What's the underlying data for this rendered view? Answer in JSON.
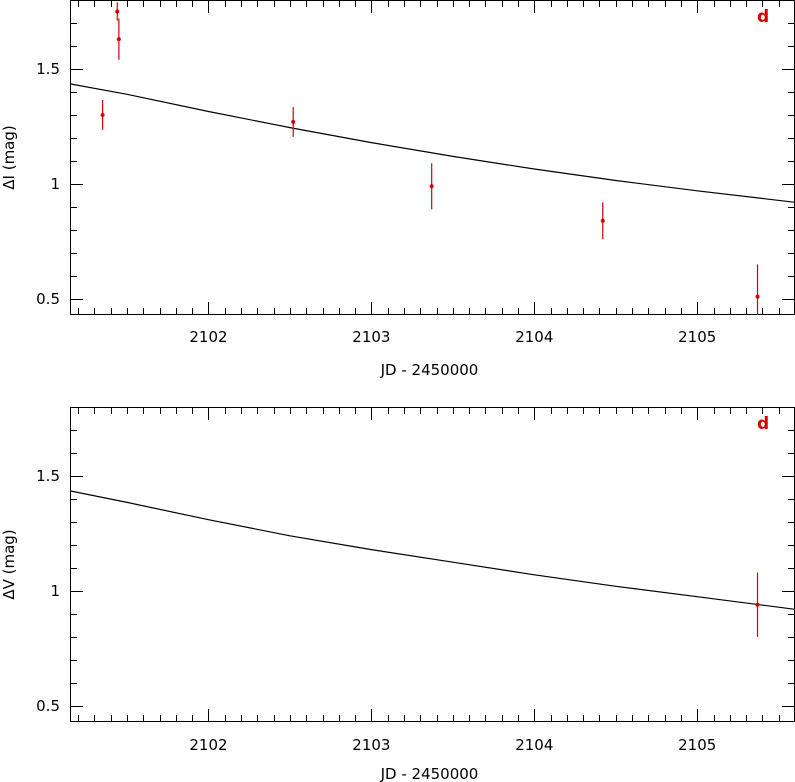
{
  "chart_data": [
    {
      "type": "scatter",
      "panel_label": "d",
      "xlabel": "JD - 2450000",
      "ylabel": "ΔI (mag)",
      "xlim": [
        2101.15,
        2105.6
      ],
      "ylim": [
        0.43,
        1.8
      ],
      "xticks": [
        2102,
        2103,
        2104,
        2105
      ],
      "xtick_labels": [
        "2102",
        "2103",
        "2104",
        "2105"
      ],
      "yticks": [
        0.5,
        1.0,
        1.5
      ],
      "ytick_labels": [
        "0.5",
        "1",
        "1.5"
      ],
      "grid": false,
      "colors": {
        "points": "#d40000",
        "model": "#000000",
        "label": "#d40000"
      },
      "points": [
        {
          "x": 2101.35,
          "y": 1.3,
          "yerr": 0.065
        },
        {
          "x": 2101.44,
          "y": 1.75,
          "yerr": 0.04
        },
        {
          "x": 2101.45,
          "y": 1.63,
          "yerr": 0.09
        },
        {
          "x": 2102.52,
          "y": 1.27,
          "yerr": 0.065
        },
        {
          "x": 2103.37,
          "y": 0.99,
          "yerr": 0.1
        },
        {
          "x": 2104.42,
          "y": 0.84,
          "yerr": 0.08
        },
        {
          "x": 2105.37,
          "y": 0.51,
          "yerr": 0.14
        }
      ],
      "model_curve": {
        "x": [
          2101.15,
          2101.5,
          2102.0,
          2102.5,
          2103.0,
          2103.5,
          2104.0,
          2104.5,
          2105.0,
          2105.6
        ],
        "y": [
          1.435,
          1.39,
          1.315,
          1.245,
          1.18,
          1.12,
          1.065,
          1.015,
          0.97,
          0.92
        ]
      }
    },
    {
      "type": "scatter",
      "panel_label": "d",
      "xlabel": "JD - 2450000",
      "ylabel": "ΔV (mag)",
      "xlim": [
        2101.15,
        2105.6
      ],
      "ylim": [
        0.43,
        1.8
      ],
      "xticks": [
        2102,
        2103,
        2104,
        2105
      ],
      "xtick_labels": [
        "2102",
        "2103",
        "2104",
        "2105"
      ],
      "yticks": [
        0.5,
        1.0,
        1.5
      ],
      "ytick_labels": [
        "0.5",
        "1",
        "1.5"
      ],
      "grid": false,
      "colors": {
        "points": "#d40000",
        "model": "#000000",
        "label": "#d40000"
      },
      "points": [
        {
          "x": 2105.37,
          "y": 0.94,
          "yerr": 0.14
        }
      ],
      "model_curve": {
        "x": [
          2101.15,
          2101.5,
          2102.0,
          2102.5,
          2103.0,
          2103.5,
          2104.0,
          2104.5,
          2105.0,
          2105.6
        ],
        "y": [
          1.435,
          1.385,
          1.31,
          1.24,
          1.18,
          1.125,
          1.07,
          1.02,
          0.975,
          0.92
        ]
      }
    }
  ]
}
